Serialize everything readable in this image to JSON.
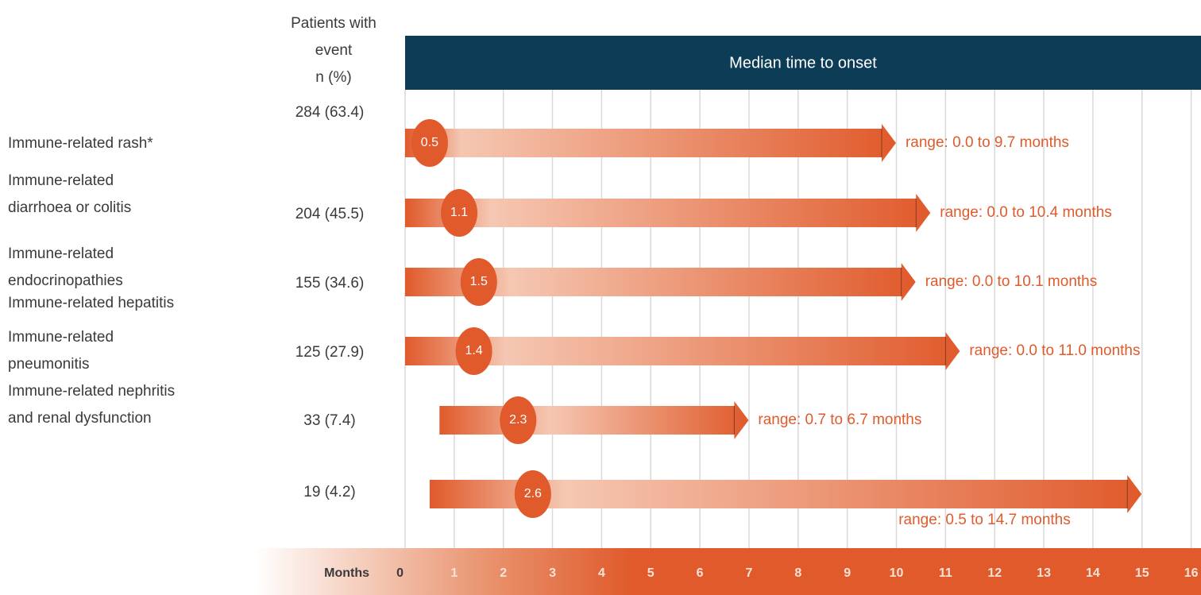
{
  "chart_data": {
    "type": "range",
    "n_header": [
      "Patients with",
      "event",
      "n (%)"
    ],
    "title": "Median time to onset",
    "xlabel": "Months",
    "categories": [
      "Immune-related rash*",
      [
        "Immune-related",
        "diarrhoea or colitis"
      ],
      [
        "Immune-related",
        "endocrinopathies"
      ],
      "Immune-related hepatitis",
      [
        "Immune-related",
        "pneumonitis"
      ],
      [
        "Immune-related nephritis",
        "and renal dysfunction"
      ]
    ],
    "n_labels": [
      "284 (63.4)",
      "204 (45.5)",
      "155 (34.6)",
      "125 (27.9)",
      "33 (7.4)",
      "19 (4.2)"
    ],
    "median": [
      0.5,
      1.1,
      1.5,
      1.4,
      2.3,
      2.6
    ],
    "low": [
      0.0,
      0.0,
      0.0,
      0.0,
      0.7,
      0.5
    ],
    "high": [
      9.7,
      10.4,
      10.1,
      11.0,
      6.7,
      14.7
    ],
    "range_labels": [
      "range: 0.0 to 9.7 months",
      "range: 0.0 to 10.4 months",
      "range: 0.0 to 10.1 months",
      "range: 0.0 to 11.0 months",
      "range: 0.7 to 6.7 months",
      "range: 0.5 to 14.7 months"
    ],
    "color": "#e05a2b",
    "xlim": [
      0,
      16.2
    ],
    "xticks": [
      0,
      1,
      2,
      3,
      4,
      5,
      6,
      7,
      8,
      9,
      10,
      11,
      12,
      13,
      14,
      15,
      16
    ],
    "grid": true
  }
}
